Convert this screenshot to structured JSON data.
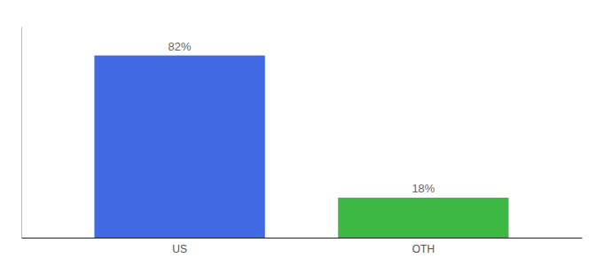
{
  "chart_data": {
    "type": "bar",
    "categories": [
      "US",
      "OTH"
    ],
    "values": [
      82,
      18
    ],
    "value_labels": [
      "82%",
      "18%"
    ],
    "colors": [
      "#4169E1",
      "#3CB843"
    ],
    "ylim": [
      0,
      95
    ],
    "data_labels": true,
    "tick_labels": "x"
  }
}
